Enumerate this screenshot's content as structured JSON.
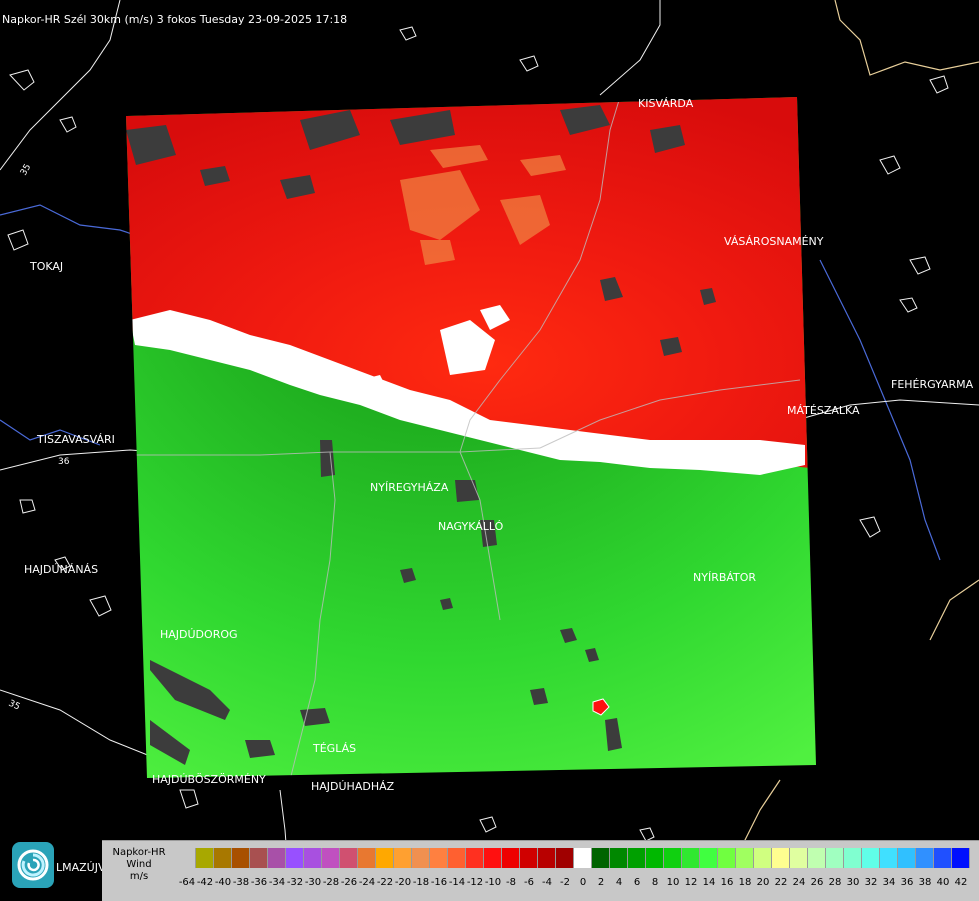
{
  "title": "Napkor-HR Szél 30km (m/s) 3 fokos Tuesday 23-09-2025 17:18",
  "cities": [
    {
      "id": "kisvarda",
      "label": "KISVÁRDA"
    },
    {
      "id": "vasarosnameny",
      "label": "VÁSÁROSNAMÉNY"
    },
    {
      "id": "tokaj",
      "label": "TOKAJ"
    },
    {
      "id": "fehergyarmat",
      "label": "FEHÉRGYARMA"
    },
    {
      "id": "mateszalka",
      "label": "MÁTÉSZALKA"
    },
    {
      "id": "tiszavasvari",
      "label": "TISZAVASVÁRI"
    },
    {
      "id": "nyiregyhaza",
      "label": "NYÍREGYHÁZA"
    },
    {
      "id": "nagykallo",
      "label": "NAGYKÁLLÓ"
    },
    {
      "id": "hajdunanas",
      "label": "HAJDÚNÁNÁS"
    },
    {
      "id": "nyirbator",
      "label": "NYÍRBÁTOR"
    },
    {
      "id": "hajdudorog",
      "label": "HAJDÚDOROG"
    },
    {
      "id": "teglas",
      "label": "TÉGLÁS"
    },
    {
      "id": "hajduboszormeny",
      "label": "HAJDÚBÖSZÖRMÉNY"
    },
    {
      "id": "hajduhadhaz",
      "label": "HAJDÚHADHÁZ"
    },
    {
      "id": "almazujvaros",
      "label": "LMAZÚJVÁR"
    }
  ],
  "road_numbers": [
    "35",
    "36",
    "35"
  ],
  "legend": {
    "label_line1": "Napkor-HR",
    "label_line2": "Wind",
    "label_line3": "m/s",
    "ticks": [
      "-64",
      "-42",
      "-40",
      "-38",
      "-36",
      "-34",
      "-32",
      "-30",
      "-28",
      "-26",
      "-24",
      "-22",
      "-20",
      "-18",
      "-16",
      "-14",
      "-12",
      "-10",
      "-8",
      "-6",
      "-4",
      "-2",
      "0",
      "2",
      "4",
      "6",
      "8",
      "10",
      "12",
      "14",
      "16",
      "18",
      "20",
      "22",
      "24",
      "26",
      "28",
      "30",
      "32",
      "34",
      "36",
      "38",
      "40",
      "42"
    ],
    "colors": [
      "#c8c8c8",
      "#a8a800",
      "#a87800",
      "#a85000",
      "#a85050",
      "#a850a8",
      "#9850ff",
      "#a850e0",
      "#c050c0",
      "#d05070",
      "#e87830",
      "#ffa800",
      "#ffa030",
      "#f09050",
      "#ff8040",
      "#ff6030",
      "#ff3020",
      "#ff1010",
      "#ee0000",
      "#d00000",
      "#b80000",
      "#a00000",
      "#ffffff",
      "#006400",
      "#008800",
      "#00a000",
      "#00b800",
      "#10d010",
      "#30e830",
      "#40ff40",
      "#70ff40",
      "#a0ff60",
      "#d0ff80",
      "#ffff90",
      "#e0ffa0",
      "#c0ffb0",
      "#a0ffc0",
      "#80ffd0",
      "#60ffe8",
      "#40e0ff",
      "#30c0ff",
      "#3090ff",
      "#2050ff",
      "#0010ff"
    ]
  },
  "colors": {
    "background": "#000000",
    "inbound_red": "#e01010",
    "outbound_green": "#20c020",
    "no_data": "#3c3c3c"
  }
}
